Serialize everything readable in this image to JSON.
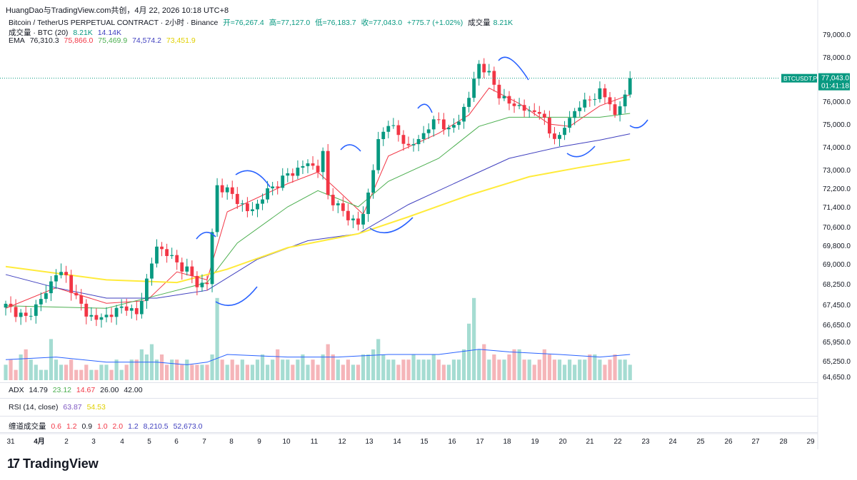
{
  "header": {
    "title": "HuangDao与TradingView.com共创，4月 22, 2026 10:18 UTC+8"
  },
  "legend": {
    "symbol": "Bitcoin / TetherUS PERPETUAL CONTRACT · 2小时 · Binance",
    "open": "开=76,267.4",
    "high": "高=77,127.0",
    "low": "低=76,183.7",
    "close": "收=77,043.0",
    "change": "+775.7 (+1.02%)",
    "vol_label": "成交量",
    "vol_value": "8.21K",
    "vol_line_label": "成交量 · BTC (20)",
    "vol_line_v1": "8.21K",
    "vol_line_v2": "14.14K",
    "ema_label": "EMA",
    "ema_v1": "76,310.3",
    "ema_v2": "75,866.0",
    "ema_v3": "75,469.9",
    "ema_v4": "74,574.2",
    "ema_v5": "73,451.9"
  },
  "indicators": {
    "adx_label": "ADX",
    "adx_values": [
      "14.79",
      "23.12",
      "14.67",
      "26.00",
      "42.00"
    ],
    "rsi_label": "RSI (14, close)",
    "rsi_values": [
      "63.87",
      "54.53"
    ],
    "vol3_label": "缠道成交量",
    "vol3_values": [
      "0.6",
      "1.2",
      "0.9",
      "1.0",
      "2.0",
      "1.2",
      "8,210.5",
      "52,673.0"
    ]
  },
  "price_tag": {
    "symbol": "BTCUSDT.P",
    "price": "77,043.0",
    "countdown": "01:41:18"
  },
  "brand": {
    "logo_text": "TradingView"
  },
  "colors": {
    "up": "#089981",
    "down": "#f23645",
    "ema_fast": "#089981",
    "ema_red": "#f23645",
    "ema_green": "#4caf50",
    "ema_blue": "#3f3fbf",
    "ema_yellow": "#ffeb3b",
    "annotation": "#2962ff"
  },
  "chart_data": {
    "type": "candlestick",
    "title": "Bitcoin / TetherUS PERPETUAL CONTRACT · 2小时 · Binance",
    "y_ticks": [
      79000,
      78000,
      76000,
      75000,
      74000,
      73000,
      72200,
      71400,
      70600,
      69800,
      69000,
      68250,
      67450,
      66650,
      65950,
      65250,
      64650
    ],
    "y_tick_labels": [
      "79,000.0",
      "78,000.0",
      "76,000.0",
      "75,000.0",
      "74,000.0",
      "73,000.0",
      "72,200.0",
      "71,400.0",
      "70,600.0",
      "69,800.0",
      "69,000.0",
      "68,250.0",
      "67,450.0",
      "66,650.0",
      "65,950.0",
      "65,250.0",
      "64,650.0"
    ],
    "x_labels": [
      "31",
      "4月",
      "2",
      "3",
      "4",
      "5",
      "6",
      "7",
      "8",
      "9",
      "10",
      "11",
      "12",
      "13",
      "14",
      "15",
      "16",
      "17",
      "18",
      "19",
      "20",
      "21",
      "22",
      "23",
      "24",
      "25",
      "26",
      "27",
      "28",
      "29"
    ],
    "last_price": 77043.0,
    "close_path": [
      [
        0,
        67400
      ],
      [
        4,
        66900
      ],
      [
        8,
        67900
      ],
      [
        10,
        68700
      ],
      [
        12,
        68500
      ],
      [
        14,
        67700
      ],
      [
        16,
        67100
      ],
      [
        18,
        66850
      ],
      [
        20,
        67000
      ],
      [
        22,
        67200
      ],
      [
        24,
        67400
      ],
      [
        26,
        67000
      ],
      [
        28,
        68400
      ],
      [
        30,
        69700
      ],
      [
        32,
        69500
      ],
      [
        34,
        69000
      ],
      [
        36,
        68800
      ],
      [
        38,
        68200
      ],
      [
        40,
        68300
      ],
      [
        41,
        70300
      ],
      [
        42,
        72300
      ],
      [
        44,
        72100
      ],
      [
        46,
        71700
      ],
      [
        48,
        71200
      ],
      [
        50,
        71500
      ],
      [
        52,
        72100
      ],
      [
        54,
        72400
      ],
      [
        56,
        72800
      ],
      [
        58,
        73000
      ],
      [
        60,
        73300
      ],
      [
        62,
        73000
      ],
      [
        63,
        73700
      ],
      [
        64,
        71900
      ],
      [
        66,
        71400
      ],
      [
        68,
        71000
      ],
      [
        70,
        70700
      ],
      [
        71,
        71100
      ],
      [
        72,
        72000
      ],
      [
        74,
        74200
      ],
      [
        76,
        75100
      ],
      [
        78,
        74500
      ],
      [
        80,
        74000
      ],
      [
        82,
        74300
      ],
      [
        84,
        74900
      ],
      [
        86,
        75200
      ],
      [
        88,
        74700
      ],
      [
        90,
        75200
      ],
      [
        92,
        76200
      ],
      [
        94,
        77700
      ],
      [
        96,
        77200
      ],
      [
        98,
        76300
      ],
      [
        100,
        75900
      ],
      [
        102,
        75800
      ],
      [
        104,
        75500
      ],
      [
        106,
        75600
      ],
      [
        108,
        74600
      ],
      [
        110,
        74400
      ],
      [
        112,
        75300
      ],
      [
        114,
        75800
      ],
      [
        116,
        76100
      ],
      [
        118,
        76400
      ],
      [
        120,
        76000
      ],
      [
        121,
        75300
      ],
      [
        123,
        76300
      ],
      [
        124,
        77043
      ]
    ],
    "ema_series": [
      {
        "color": "#f23645",
        "path": [
          [
            0,
            67300
          ],
          [
            10,
            68100
          ],
          [
            20,
            67500
          ],
          [
            28,
            67600
          ],
          [
            34,
            68700
          ],
          [
            40,
            68400
          ],
          [
            44,
            71200
          ],
          [
            56,
            72400
          ],
          [
            62,
            72900
          ],
          [
            66,
            72100
          ],
          [
            71,
            71100
          ],
          [
            76,
            73600
          ],
          [
            86,
            74600
          ],
          [
            92,
            75400
          ],
          [
            96,
            76600
          ],
          [
            102,
            75900
          ],
          [
            108,
            75000
          ],
          [
            112,
            74900
          ],
          [
            118,
            75800
          ],
          [
            124,
            76300
          ]
        ]
      },
      {
        "color": "#4caf50",
        "path": [
          [
            0,
            67400
          ],
          [
            20,
            67300
          ],
          [
            30,
            67800
          ],
          [
            40,
            68300
          ],
          [
            46,
            69900
          ],
          [
            56,
            71400
          ],
          [
            62,
            72100
          ],
          [
            70,
            71400
          ],
          [
            76,
            72500
          ],
          [
            86,
            73500
          ],
          [
            94,
            74900
          ],
          [
            100,
            75300
          ],
          [
            110,
            75300
          ],
          [
            118,
            75300
          ],
          [
            124,
            75470
          ]
        ]
      },
      {
        "color": "#3f3fbf",
        "path": [
          [
            0,
            68600
          ],
          [
            10,
            68100
          ],
          [
            20,
            67700
          ],
          [
            30,
            67700
          ],
          [
            40,
            68000
          ],
          [
            50,
            69200
          ],
          [
            60,
            70000
          ],
          [
            70,
            70300
          ],
          [
            80,
            71500
          ],
          [
            92,
            72700
          ],
          [
            100,
            73500
          ],
          [
            110,
            74000
          ],
          [
            118,
            74300
          ],
          [
            124,
            74574
          ]
        ]
      },
      {
        "color": "#ffeb3b",
        "path": [
          [
            0,
            68900
          ],
          [
            20,
            68400
          ],
          [
            34,
            68300
          ],
          [
            44,
            68800
          ],
          [
            56,
            69700
          ],
          [
            70,
            70300
          ],
          [
            80,
            71000
          ],
          [
            92,
            71900
          ],
          [
            104,
            72700
          ],
          [
            114,
            73100
          ],
          [
            124,
            73452
          ]
        ]
      }
    ],
    "volume": {
      "values_k": [
        3,
        4,
        2,
        5,
        6,
        4,
        3,
        2,
        2,
        8,
        4,
        3,
        3,
        4,
        2,
        2,
        3,
        2,
        2,
        3,
        3,
        2,
        4,
        2,
        3,
        4,
        4,
        6,
        5,
        7,
        4,
        5,
        3,
        4,
        4,
        3,
        4,
        3,
        3,
        3,
        3,
        5,
        16,
        4,
        3,
        4,
        3,
        4,
        3,
        3,
        4,
        5,
        3,
        4,
        6,
        4,
        4,
        3,
        4,
        5,
        3,
        4,
        3,
        5,
        7,
        5,
        4,
        3,
        4,
        3,
        3,
        5,
        5,
        6,
        8,
        5,
        4,
        4,
        3,
        4,
        4,
        5,
        4,
        4,
        4,
        5,
        4,
        3,
        3,
        4,
        4,
        6,
        11,
        16,
        6,
        7,
        4,
        5,
        4,
        4,
        5,
        6,
        6,
        4,
        4,
        3,
        4,
        6,
        5,
        4,
        4,
        3,
        4,
        3,
        4,
        4,
        5,
        5,
        4,
        3,
        4,
        5,
        4,
        4,
        3
      ],
      "ma_path_k": [
        [
          0,
          4
        ],
        [
          10,
          4.5
        ],
        [
          20,
          3.5
        ],
        [
          30,
          3.5
        ],
        [
          36,
          3
        ],
        [
          40,
          3.5
        ],
        [
          44,
          5
        ],
        [
          56,
          4.5
        ],
        [
          66,
          4.5
        ],
        [
          76,
          5
        ],
        [
          86,
          5
        ],
        [
          94,
          6
        ],
        [
          100,
          5.5
        ],
        [
          110,
          5
        ],
        [
          118,
          4.5
        ],
        [
          124,
          5
        ]
      ]
    }
  }
}
